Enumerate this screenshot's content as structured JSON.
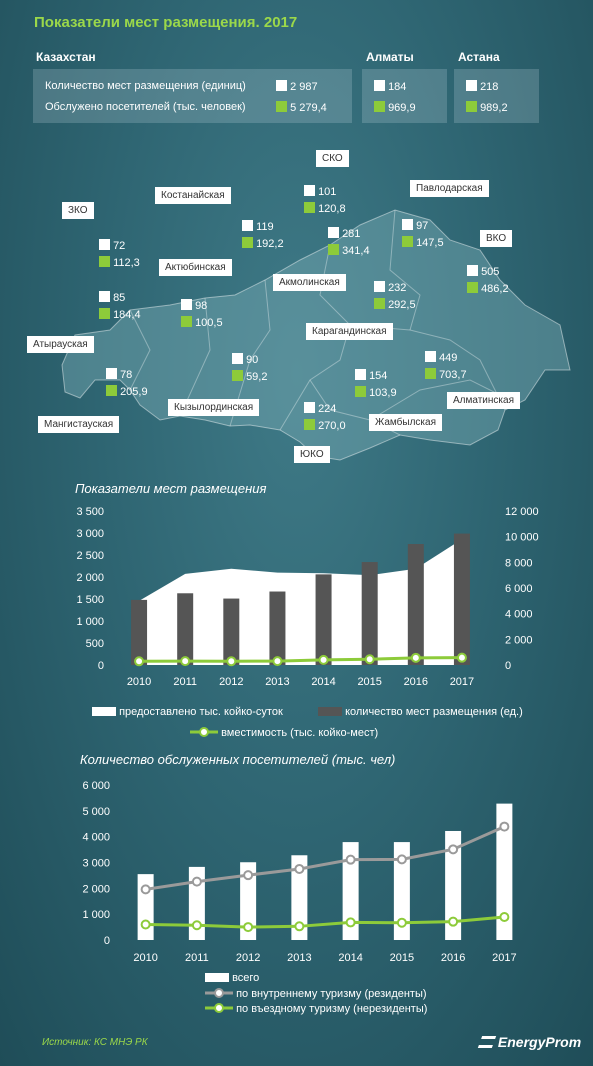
{
  "title": "Показатели мест размещения. 2017",
  "summary": {
    "kazakhstan": {
      "name": "Казахстан",
      "rows": [
        {
          "label": "Количество мест размещения (единиц)",
          "value": "2 987"
        },
        {
          "label": "Обслужено посетителей (тыс. человек)",
          "value": "5 279,4"
        }
      ]
    },
    "almaty": {
      "name": "Алматы",
      "v1": "184",
      "v2": "969,9"
    },
    "astana": {
      "name": "Астана",
      "v1": "218",
      "v2": "989,2"
    }
  },
  "regions": [
    {
      "name": "ЗКО",
      "v1": "72",
      "v2": "112,3"
    },
    {
      "name": "Атырауская",
      "v1": "85",
      "v2": "184,4"
    },
    {
      "name": "Мангистауская",
      "v1": "78",
      "v2": "205,9"
    },
    {
      "name": "Актюбинская",
      "v1": "98",
      "v2": "100,5"
    },
    {
      "name": "Костанайская",
      "v1": "119",
      "v2": "192,2"
    },
    {
      "name": "СКО",
      "v1": "101",
      "v2": "120,8"
    },
    {
      "name": "Акмолинская",
      "v1": "281",
      "v2": "341,4"
    },
    {
      "name": "Павлодарская",
      "v1": "97",
      "v2": "147,5"
    },
    {
      "name": "ВКО",
      "v1": "505",
      "v2": "486,2"
    },
    {
      "name": "Карагандинская",
      "v1": "232",
      "v2": "292,5"
    },
    {
      "name": "Кызылординская",
      "v1": "90",
      "v2": "59,2"
    },
    {
      "name": "ЮКО",
      "v1": "224",
      "v2": "270,0"
    },
    {
      "name": "Жамбылская",
      "v1": "154",
      "v2": "103,9"
    },
    {
      "name": "Алматинская",
      "v1": "449",
      "v2": "703,7"
    }
  ],
  "colors": {
    "white": "#ffffff",
    "green": "#8dcb3a",
    "gray_bar": "#555555",
    "gray_line": "#9a9a9a",
    "title": "#9bd84a"
  },
  "chart_data": [
    {
      "type": "bar",
      "title": "Показатели мест размещения",
      "categories": [
        "2010",
        "2011",
        "2012",
        "2013",
        "2014",
        "2015",
        "2016",
        "2017"
      ],
      "left_ticks": [
        "0",
        "500",
        "1 000",
        "1 500",
        "2 000",
        "2 500",
        "3 000",
        "3 500"
      ],
      "right_ticks": [
        "0",
        "2 000",
        "4 000",
        "6 000",
        "8 000",
        "10 000",
        "12 000"
      ],
      "ylim_left": [
        0,
        3500
      ],
      "ylim_right": [
        0,
        12000
      ],
      "series": [
        {
          "name": "предоставлено тыс. койко-суток",
          "type": "area",
          "axis": "right",
          "values": [
            5000,
            7100,
            7500,
            7200,
            7150,
            7000,
            7500,
            9800
          ]
        },
        {
          "name": "количество мест размещения (ед.)",
          "type": "bar",
          "axis": "left",
          "values": [
            1480,
            1630,
            1510,
            1670,
            2060,
            2340,
            2750,
            2987
          ]
        },
        {
          "name": "вместимость (тыс. койко-мест)",
          "type": "line",
          "axis": "right",
          "values": [
            290,
            300,
            295,
            300,
            400,
            450,
            560,
            570
          ]
        }
      ]
    },
    {
      "type": "bar",
      "title": "Количество обслуженных  посетителей (тыс. чел)",
      "categories": [
        "2010",
        "2011",
        "2012",
        "2013",
        "2014",
        "2015",
        "2016",
        "2017"
      ],
      "ticks": [
        "0",
        "1 000",
        "2 000",
        "3 000",
        "4 000",
        "5 000",
        "6 000"
      ],
      "ylim": [
        0,
        6000
      ],
      "series": [
        {
          "name": "всего",
          "type": "bar",
          "values": [
            2550,
            2830,
            3010,
            3280,
            3790,
            3790,
            4220,
            5279.4
          ]
        },
        {
          "name": "по внутреннему туризму (резиденты)",
          "type": "line",
          "values": [
            1960,
            2260,
            2510,
            2750,
            3110,
            3120,
            3510,
            4390
          ]
        },
        {
          "name": "по въездному туризму (нерезиденты)",
          "type": "line",
          "values": [
            600,
            570,
            500,
            530,
            680,
            670,
            710,
            890
          ]
        }
      ]
    }
  ],
  "footer": {
    "source": "Источник: КС МНЭ РК",
    "brand": "EnergyProm"
  }
}
